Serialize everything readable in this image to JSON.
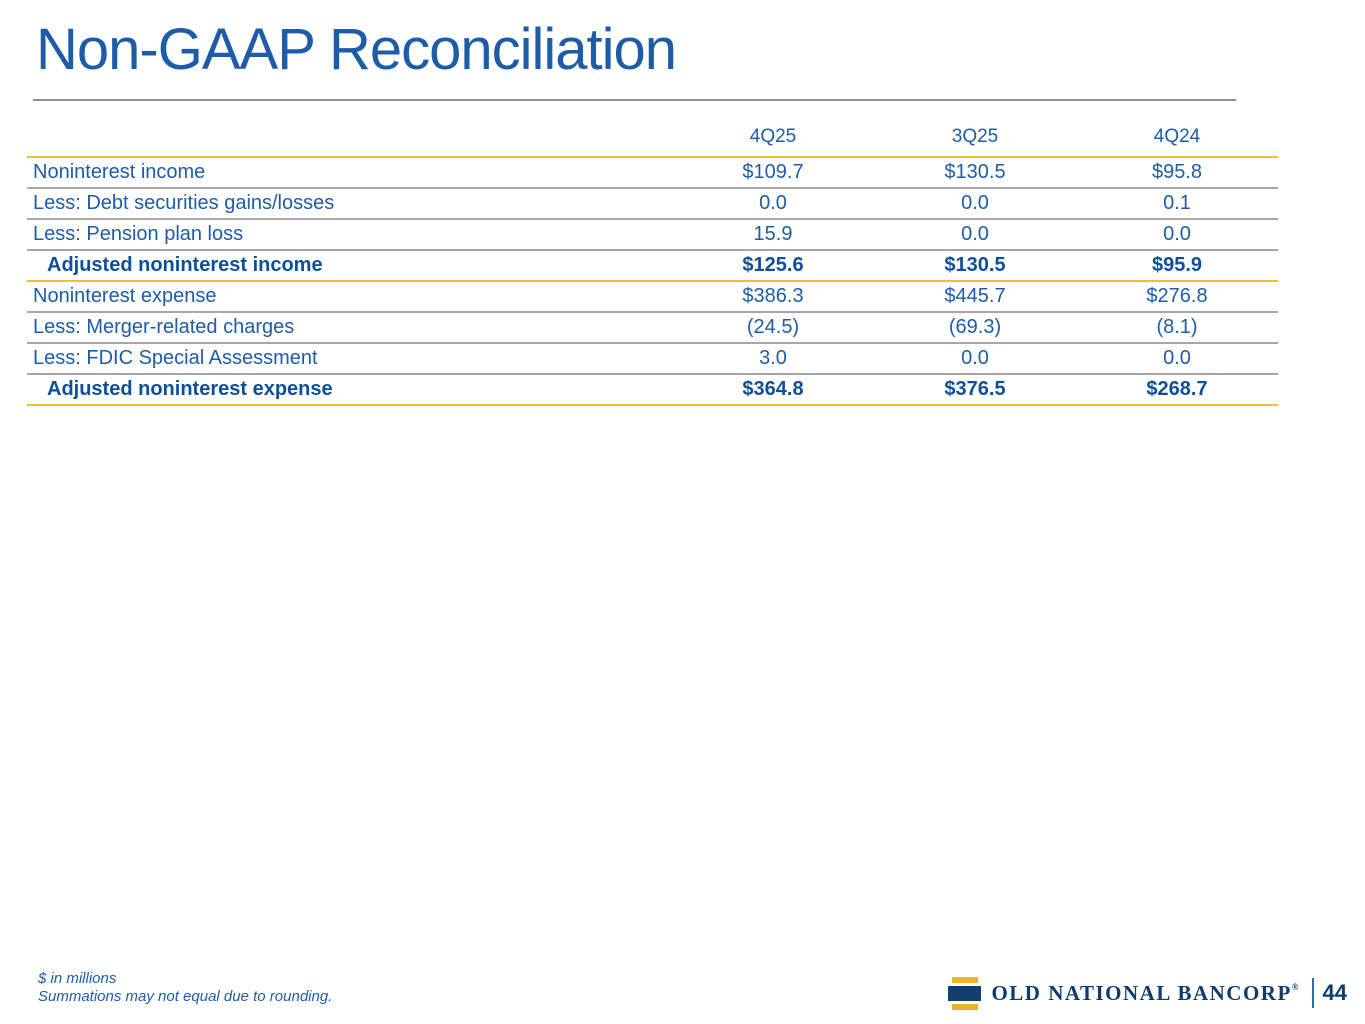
{
  "title": "Non-GAAP Reconciliation",
  "colors": {
    "title_blue": "#1d5ca7",
    "text_blue": "#1e5ca8",
    "total_blue": "#0f4f99",
    "gold_rule": "#f0c12f",
    "gray_rule": "#a7a7a7",
    "logo_navy": "#0e3c6d",
    "logo_gold": "#efb32b"
  },
  "table": {
    "columns": [
      "4Q25",
      "3Q25",
      "4Q24"
    ],
    "rows": [
      {
        "label": "Noninterest income",
        "values": [
          "$109.7",
          "$130.5",
          "$95.8"
        ],
        "style": "regular"
      },
      {
        "label": "Less: Debt securities gains/losses",
        "values": [
          "0.0",
          "0.0",
          "0.1"
        ],
        "style": "regular"
      },
      {
        "label": "Less: Pension plan loss",
        "values": [
          "15.9",
          "0.0",
          "0.0"
        ],
        "style": "regular"
      },
      {
        "label": "Adjusted noninterest income",
        "values": [
          "$125.6",
          "$130.5",
          "$95.9"
        ],
        "style": "total"
      },
      {
        "label": "Noninterest expense",
        "values": [
          "$386.3",
          "$445.7",
          "$276.8"
        ],
        "style": "regular"
      },
      {
        "label": "Less: Merger-related charges",
        "values": [
          "(24.5)",
          "(69.3)",
          "(8.1)"
        ],
        "style": "regular"
      },
      {
        "label": "Less: FDIC Special Assessment",
        "values": [
          "3.0",
          "0.0",
          "0.0"
        ],
        "style": "regular"
      },
      {
        "label": "Adjusted noninterest expense",
        "values": [
          "$364.8",
          "$376.5",
          "$268.7"
        ],
        "style": "total"
      }
    ]
  },
  "footnotes": {
    "line1": "$ in millions",
    "line2": "Summations may not equal due to rounding."
  },
  "footer": {
    "logo_text": "OLD NATIONAL BANCORP",
    "registered_mark": "®",
    "page_number": "44"
  }
}
